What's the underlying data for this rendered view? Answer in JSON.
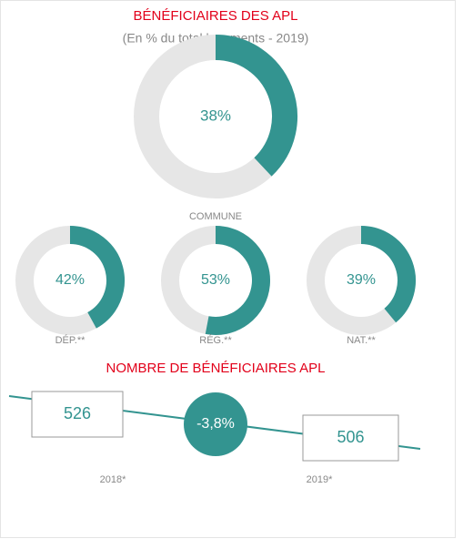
{
  "title": "BÉNÉFICIAIRES DES APL",
  "subtitle": "(En % du total logements - 2019)",
  "chart_data": [
    {
      "type": "donut",
      "label": "COMMUNE",
      "value": 38,
      "value_label": "38%",
      "color": "#339490"
    },
    {
      "type": "donut",
      "label": "DÉP.**",
      "value": 42,
      "value_label": "42%",
      "color": "#339490"
    },
    {
      "type": "donut",
      "label": "RÉG.**",
      "value": 53,
      "value_label": "53%",
      "color": "#339490"
    },
    {
      "type": "donut",
      "label": "NAT.**",
      "value": 39,
      "value_label": "39%",
      "color": "#339490"
    },
    {
      "type": "comparison",
      "title": "NOMBRE DE BÉNÉFICIAIRES APL",
      "categories": [
        "2018*",
        "2019*"
      ],
      "values": [
        526,
        506
      ],
      "change": -3.8,
      "change_label": "-3,8%",
      "color": "#339490"
    }
  ]
}
